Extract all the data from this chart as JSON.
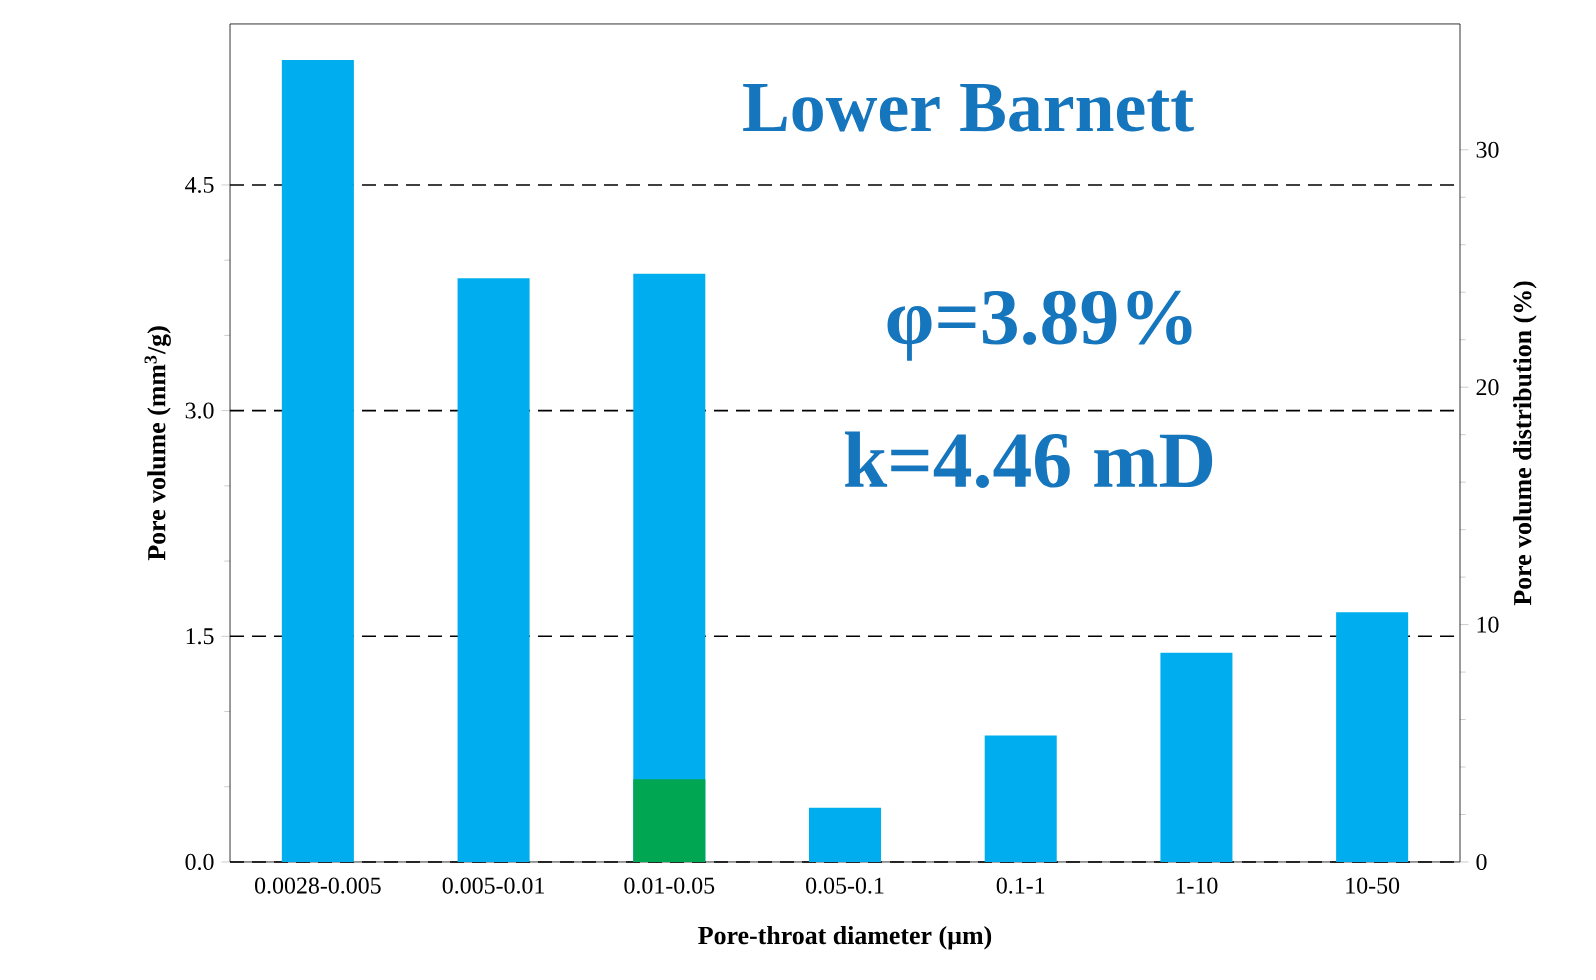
{
  "chart_data": {
    "type": "bar",
    "xlabel": "Pore-throat diameter (µm)",
    "ylabel": "Pore volume (mm$^{3}$/g)",
    "y2label": "Pore volume distribution (%)",
    "categories": [
      "0.0028-0.005",
      "0.005-0.01",
      "0.01-0.05",
      "0.05-0.1",
      "0.1-1",
      "1-10",
      "10-50"
    ],
    "series": [
      {
        "color": "#00aeef",
        "values": [
          5.33,
          3.88,
          3.91,
          0.36,
          0.84,
          1.39,
          1.66
        ]
      },
      {
        "color": "#00a651",
        "values": [
          null,
          null,
          0.55,
          null,
          null,
          null,
          null
        ]
      }
    ],
    "ylim": [
      0,
      5.57
    ],
    "yticks": [
      {
        "value": 0,
        "label": "0.0"
      },
      {
        "value": 1.5,
        "label": "1.5"
      },
      {
        "value": 3,
        "label": "3.0"
      },
      {
        "value": 4.5,
        "label": "4.5"
      }
    ],
    "y2lim": [
      0,
      35.3
    ],
    "y2ticks": [
      0,
      10,
      20,
      30
    ],
    "grid": "y",
    "annotations": [
      "Lower Barnett",
      "φ=3.89%",
      "k=4.46 mD"
    ]
  }
}
